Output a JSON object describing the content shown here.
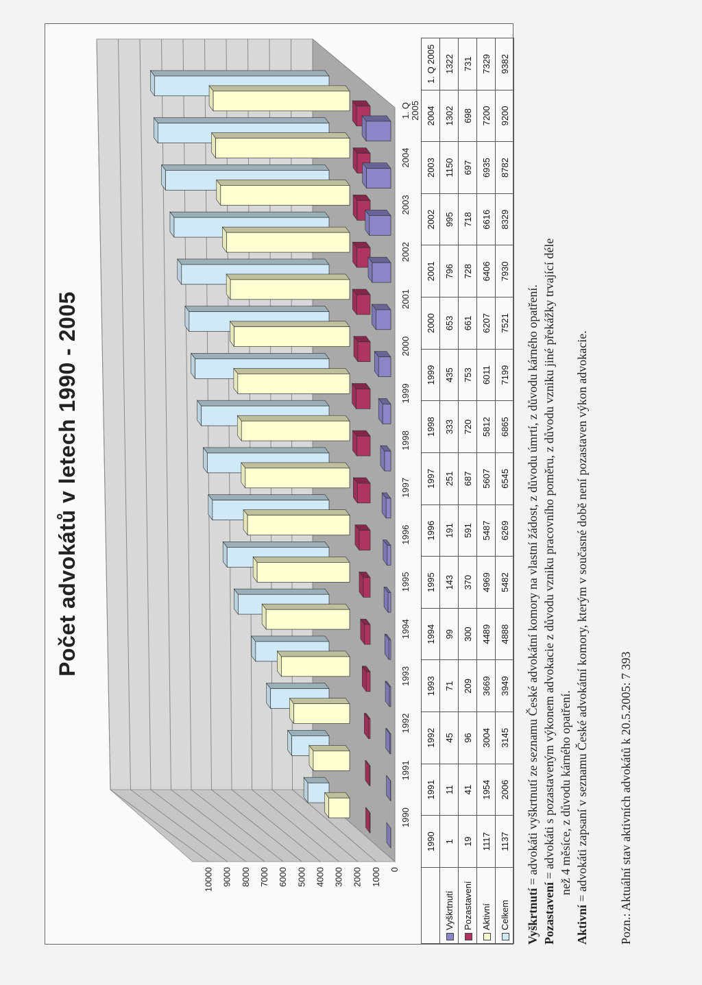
{
  "chart_data": {
    "type": "bar",
    "title": "Počet advokátů v letech 1990 - 2005",
    "categories": [
      "1990",
      "1991",
      "1992",
      "1993",
      "1994",
      "1995",
      "1996",
      "1997",
      "1998",
      "1999",
      "2000",
      "2001",
      "2002",
      "2003",
      "2004",
      "1. Q 2005"
    ],
    "series": [
      {
        "name": "Vyškrtnutí",
        "color": "#8a86c8",
        "values": [
          1,
          11,
          45,
          71,
          99,
          143,
          191,
          251,
          333,
          435,
          653,
          796,
          995,
          1150,
          1302,
          1322
        ]
      },
      {
        "name": "Pozastavení",
        "color": "#b03462",
        "values": [
          19,
          41,
          96,
          209,
          300,
          370,
          591,
          687,
          720,
          753,
          661,
          728,
          718,
          697,
          698,
          731
        ]
      },
      {
        "name": "Aktivní",
        "color": "#ffffd2",
        "values": [
          1117,
          1954,
          3004,
          3669,
          4489,
          4969,
          5487,
          5607,
          5812,
          6011,
          6207,
          6406,
          6616,
          6935,
          7200,
          7329
        ]
      },
      {
        "name": "Celkem",
        "color": "#cfe9f6",
        "values": [
          1137,
          2006,
          3145,
          3949,
          4888,
          5482,
          6269,
          6545,
          6865,
          7199,
          7521,
          7930,
          8329,
          8782,
          9200,
          9382
        ]
      }
    ],
    "yticks": [
      "0",
      "1000",
      "2000",
      "3000",
      "4000",
      "5000",
      "6000",
      "7000",
      "8000",
      "9000",
      "10000"
    ],
    "ylim": [
      0,
      10000
    ],
    "grid": true,
    "legend": "table"
  },
  "notes": {
    "vyskrtnuti_term": "Vyškrtnutí",
    "vyskrtnuti_text": " = advokáti vyškrtnutí ze seznamu České advokátní komory na vlastní žádost, z důvodu úmrtí, z důvodu kárného opatření.",
    "pozastaveni_term": "Pozastavení",
    "pozastaveni_text": " = advokáti s pozastaveným výkonem advokacie z důvodu vzniku pracovního poměru, z důvodu vzniku jiné překážky trvající déle",
    "pozastaveni_text2": "než 4 měsíce, z důvodu kárného opatření.",
    "aktivni_term": "Aktivní",
    "aktivni_text": " = advokáti zapsaní v seznamu České advokátní komory, kterým v současné době není pozastaven výkon advokacie.",
    "pozn": "Pozn.: Aktuální stav aktivních advokátů k 20.5.2005: 7 393"
  }
}
